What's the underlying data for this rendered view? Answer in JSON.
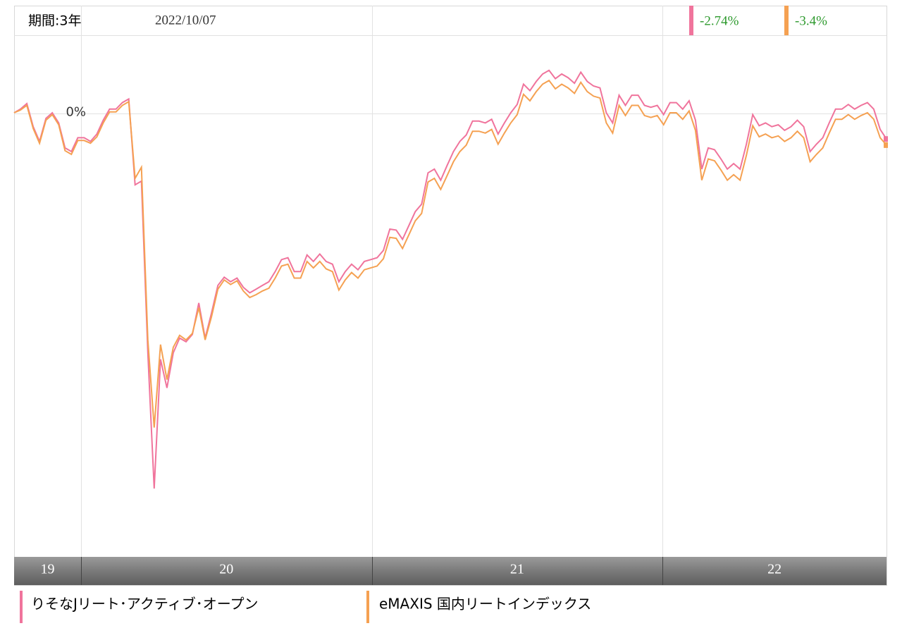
{
  "chart_data": {
    "type": "line",
    "period": "期間:3年",
    "date": "2022/10/07",
    "xlim": [
      2019.77,
      2022.77
    ],
    "xticks": [
      {
        "value": 2019,
        "label": "19"
      },
      {
        "value": 2020,
        "label": "20"
      },
      {
        "value": 2021,
        "label": "21"
      },
      {
        "value": 2022,
        "label": "22"
      }
    ],
    "ylim": [
      -48,
      8.5
    ],
    "yticks": [
      {
        "value": 0,
        "label": "0%"
      }
    ],
    "grid": true,
    "series": [
      {
        "name": "りそなJリート･アクティブ･オープン",
        "color": "#f0749c",
        "latest_label": "-2.74%",
        "values": [
          0.1,
          0.5,
          1.1,
          -1.4,
          -3.0,
          -0.5,
          0.1,
          -1.0,
          -3.7,
          -4.1,
          -2.6,
          -2.6,
          -3.0,
          -2.2,
          -0.7,
          0.5,
          0.5,
          1.2,
          1.6,
          -7.7,
          -7.3,
          -25.9,
          -40.6,
          -26.6,
          -29.7,
          -25.9,
          -24.3,
          -24.7,
          -23.9,
          -20.5,
          -24.3,
          -21.6,
          -18.6,
          -17.7,
          -18.2,
          -17.8,
          -18.8,
          -19.4,
          -19.0,
          -18.6,
          -18.2,
          -17.1,
          -15.8,
          -15.6,
          -17.1,
          -17.1,
          -15.3,
          -16.0,
          -15.2,
          -16.0,
          -16.3,
          -18.2,
          -17.1,
          -16.3,
          -16.9,
          -16.0,
          -15.8,
          -15.6,
          -14.8,
          -12.5,
          -12.6,
          -13.6,
          -12.1,
          -10.6,
          -9.8,
          -6.4,
          -6.0,
          -7.2,
          -5.6,
          -4.1,
          -3.0,
          -2.3,
          -0.8,
          -0.8,
          -1.0,
          -0.6,
          -2.2,
          -1.0,
          0.1,
          1.0,
          3.2,
          2.5,
          3.5,
          4.3,
          4.7,
          3.8,
          4.3,
          3.9,
          3.3,
          4.5,
          3.5,
          3.0,
          2.8,
          0.1,
          -1.0,
          2.0,
          0.9,
          2.0,
          2.0,
          0.9,
          0.7,
          0.9,
          -0.1,
          1.2,
          1.2,
          0.5,
          1.4,
          -0.7,
          -6.0,
          -3.7,
          -3.9,
          -4.9,
          -6.0,
          -5.4,
          -6.0,
          -3.3,
          -0.1,
          -1.3,
          -1.0,
          -1.4,
          -1.2,
          -1.8,
          -1.4,
          -0.7,
          -1.4,
          -4.1,
          -3.3,
          -2.6,
          -1.0,
          0.5,
          0.5,
          1.0,
          0.5,
          0.9,
          1.2,
          0.5,
          -1.7,
          -2.74
        ]
      },
      {
        "name": "eMAXIS 国内リートインデックス",
        "color": "#f5a152",
        "latest_label": "-3.4%",
        "values": [
          0.1,
          0.4,
          0.9,
          -1.6,
          -3.2,
          -0.7,
          -0.1,
          -1.2,
          -4.0,
          -4.4,
          -2.9,
          -2.9,
          -3.2,
          -2.5,
          -1.0,
          0.2,
          0.2,
          0.9,
          1.3,
          -7.0,
          -5.8,
          -24.5,
          -34.0,
          -25.0,
          -28.8,
          -25.3,
          -24.0,
          -24.5,
          -23.8,
          -21.0,
          -24.5,
          -22.0,
          -19.0,
          -18.0,
          -18.5,
          -18.1,
          -19.2,
          -19.9,
          -19.6,
          -19.2,
          -18.9,
          -17.8,
          -16.5,
          -16.3,
          -17.8,
          -17.8,
          -16.0,
          -16.7,
          -16.0,
          -16.8,
          -17.1,
          -19.1,
          -18.0,
          -17.2,
          -17.8,
          -16.9,
          -16.7,
          -16.5,
          -15.7,
          -13.4,
          -13.5,
          -14.6,
          -13.1,
          -11.6,
          -10.8,
          -7.4,
          -7.0,
          -8.2,
          -6.7,
          -5.2,
          -4.1,
          -3.4,
          -1.9,
          -1.9,
          -2.1,
          -1.7,
          -3.3,
          -2.1,
          -1.0,
          -0.1,
          2.1,
          1.4,
          2.4,
          3.2,
          3.6,
          2.7,
          3.2,
          2.8,
          2.2,
          3.4,
          2.4,
          1.9,
          1.7,
          -1.0,
          -2.1,
          0.9,
          -0.2,
          0.9,
          0.9,
          -0.2,
          -0.4,
          -0.2,
          -1.2,
          0.1,
          0.1,
          -0.6,
          0.3,
          -1.8,
          -7.2,
          -4.9,
          -5.1,
          -6.1,
          -7.2,
          -6.6,
          -7.2,
          -4.5,
          -1.3,
          -2.5,
          -2.2,
          -2.6,
          -2.4,
          -3.0,
          -2.6,
          -1.9,
          -2.6,
          -5.2,
          -4.4,
          -3.7,
          -2.1,
          -0.6,
          -0.6,
          -0.1,
          -0.6,
          -0.2,
          0.1,
          -0.6,
          -2.6,
          -3.4
        ]
      }
    ]
  }
}
